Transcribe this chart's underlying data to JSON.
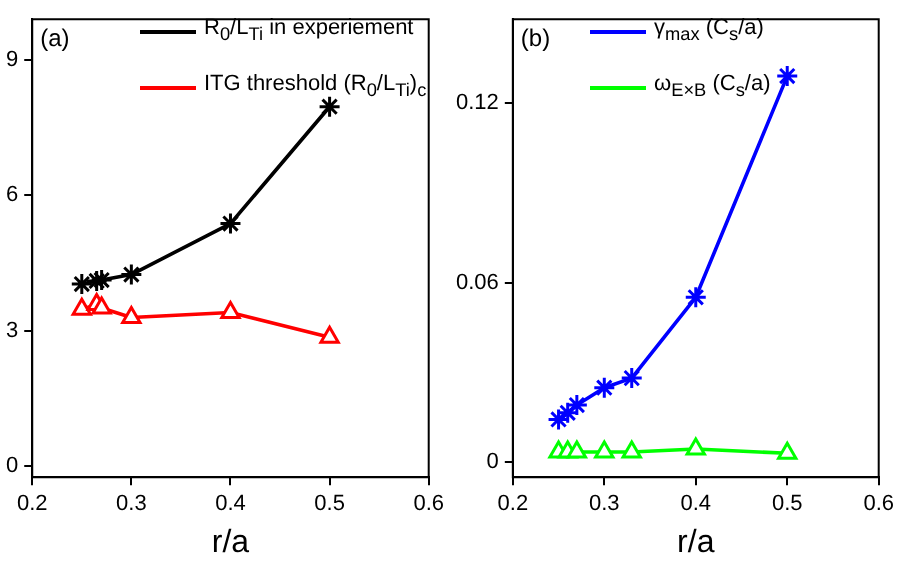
{
  "chart_data": [
    {
      "type": "line",
      "xlabel": "r/a",
      "annotations": [
        "(a)"
      ],
      "xlim": [
        0.2,
        0.6
      ],
      "xticks": [
        0.2,
        0.3,
        0.4,
        0.5,
        0.6
      ],
      "ylim": [
        -0.25,
        9.9
      ],
      "yticks": [
        0,
        3,
        6,
        9
      ],
      "grid": false,
      "legend": "top",
      "line_style": "solid",
      "series": [
        {
          "name": "R$_{0}$/L$_{Ti}$ in experiement",
          "color": "#000000",
          "marker": "cross",
          "x": [
            0.25,
            0.265,
            0.27,
            0.3,
            0.4,
            0.5
          ],
          "values": [
            4.03,
            4.1,
            4.12,
            4.24,
            5.37,
            7.96
          ]
        },
        {
          "name": "ITG threshold (R$_{0}$/L$_{Ti}$)$_{c}$",
          "color": "#ff0000",
          "marker": "triangle",
          "x": [
            0.25,
            0.265,
            0.27,
            0.3,
            0.4,
            0.5
          ],
          "values": [
            3.47,
            3.58,
            3.5,
            3.29,
            3.4,
            2.85
          ]
        }
      ]
    },
    {
      "type": "line",
      "xlabel": "r/a",
      "annotations": [
        "(b)"
      ],
      "xlim": [
        0.2,
        0.6
      ],
      "xticks": [
        0.2,
        0.3,
        0.4,
        0.5,
        0.6
      ],
      "ylim": [
        -0.005,
        0.148
      ],
      "yticks": [
        0,
        0.06,
        0.12
      ],
      "grid": false,
      "legend": "top",
      "line_style": "solid",
      "series": [
        {
          "name": "γ$_{max}$ (C$_{s}$/a)",
          "color": "#0000ff",
          "marker": "cross",
          "x": [
            0.25,
            0.26,
            0.27,
            0.3,
            0.33,
            0.4,
            0.5
          ],
          "values": [
            0.0143,
            0.0165,
            0.0191,
            0.0249,
            0.0281,
            0.0551,
            0.129
          ]
        },
        {
          "name": "ω$_{E×B}$ (C$_{s}$/a)",
          "color": "#00ff00",
          "marker": "triangle",
          "x": [
            0.25,
            0.26,
            0.27,
            0.3,
            0.33,
            0.4,
            0.5
          ],
          "values": [
            0.0034,
            0.0034,
            0.0034,
            0.0034,
            0.0034,
            0.0044,
            0.003
          ]
        }
      ]
    }
  ]
}
